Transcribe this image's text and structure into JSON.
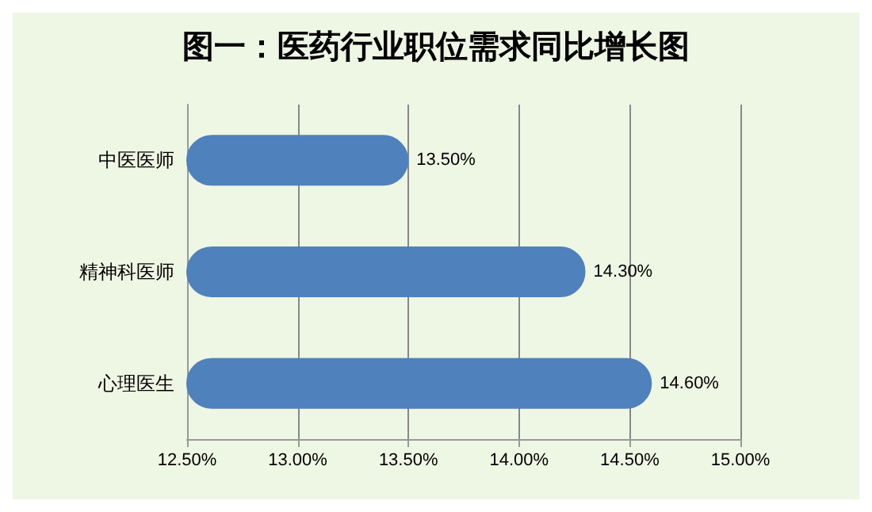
{
  "chart_data": {
    "type": "bar",
    "orientation": "horizontal",
    "title": "图一：医药行业职位需求同比增长图",
    "categories": [
      "中医医师",
      "精神科医师",
      "心理医生"
    ],
    "values": [
      13.5,
      14.3,
      14.6
    ],
    "value_labels": [
      "13.50%",
      "14.30%",
      "14.60%"
    ],
    "color": "#4f81bd",
    "xlim": [
      12.5,
      15
    ],
    "xticks": [
      {
        "value": 12.5,
        "label": "12.50%"
      },
      {
        "value": 13,
        "label": "13.00%"
      },
      {
        "value": 13.5,
        "label": "13.50%"
      },
      {
        "value": 14,
        "label": "14.00%"
      },
      {
        "value": 14.5,
        "label": "14.50%"
      },
      {
        "value": 15,
        "label": "15.00%"
      }
    ],
    "grid": "x"
  }
}
